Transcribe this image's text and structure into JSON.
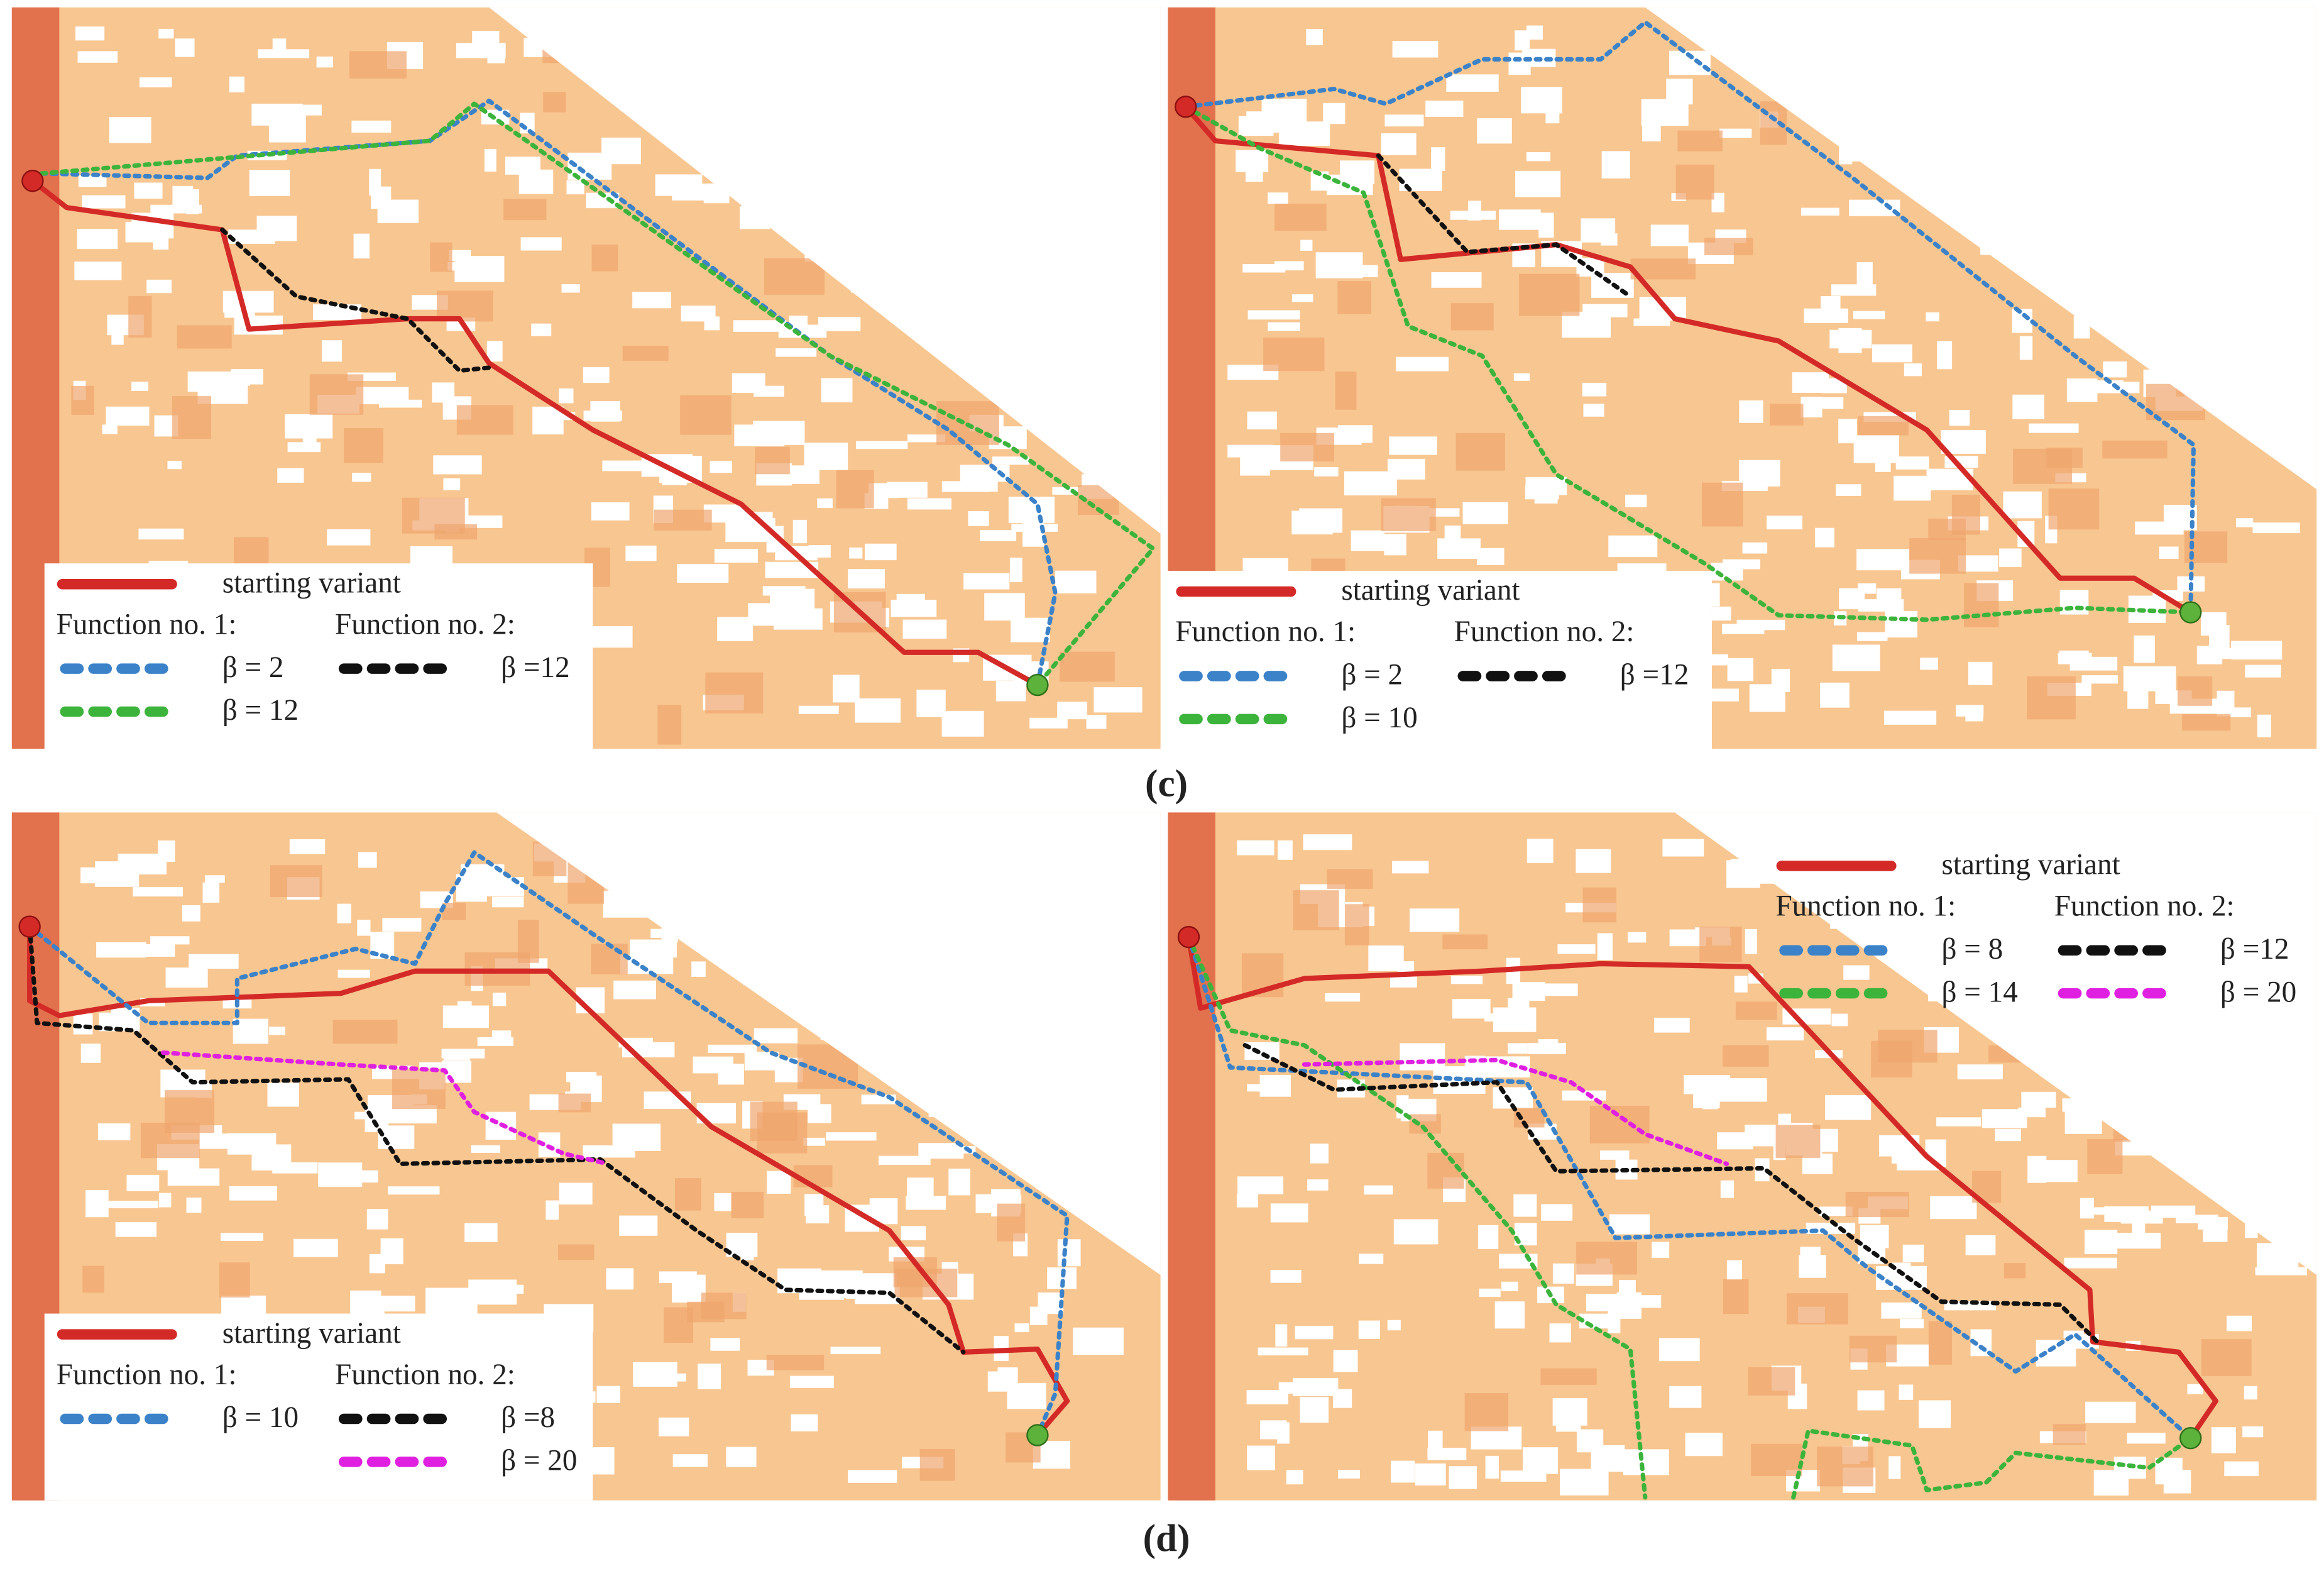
{
  "panels": [
    {
      "legend": {
        "starting": {
          "label": "starting variant",
          "color": "#d42a27"
        },
        "function1": {
          "heading": "Function no. 1:",
          "items": [
            {
              "label": "β = 2",
              "color": "#3b82c9"
            },
            {
              "label": "β = 12",
              "color": "#3cb43c"
            }
          ]
        },
        "function2": {
          "heading": "Function no. 2:",
          "items": [
            {
              "label": "β =12",
              "color": "#111111"
            }
          ]
        }
      }
    },
    {
      "legend": {
        "starting": {
          "label": "starting variant",
          "color": "#d42a27"
        },
        "function1": {
          "heading": "Function no. 1:",
          "items": [
            {
              "label": "β = 2",
              "color": "#3b82c9"
            },
            {
              "label": "β = 10",
              "color": "#3cb43c"
            }
          ]
        },
        "function2": {
          "heading": "Function no. 2:",
          "items": [
            {
              "label": "β =12",
              "color": "#111111"
            }
          ]
        }
      }
    },
    {
      "legend": {
        "starting": {
          "label": "starting variant",
          "color": "#d42a27"
        },
        "function1": {
          "heading": "Function no. 1:",
          "items": [
            {
              "label": "β = 10",
              "color": "#3b82c9"
            }
          ]
        },
        "function2": {
          "heading": "Function no. 2:",
          "items": [
            {
              "label": "β =8",
              "color": "#111111"
            },
            {
              "label": "β = 20",
              "color": "#e020e0"
            }
          ]
        }
      }
    },
    {
      "legend": {
        "starting": {
          "label": "starting variant",
          "color": "#d42a27"
        },
        "function1": {
          "heading": "Function no. 1:",
          "items": [
            {
              "label": "β = 8",
              "color": "#3b82c9"
            },
            {
              "label": "β = 14",
              "color": "#3cb43c"
            }
          ]
        },
        "function2": {
          "heading": "Function no. 2:",
          "items": [
            {
              "label": "β =12",
              "color": "#111111"
            },
            {
              "label": "β = 20",
              "color": "#e020e0"
            }
          ]
        }
      }
    }
  ],
  "captions": [
    "(c)",
    "(d)"
  ]
}
